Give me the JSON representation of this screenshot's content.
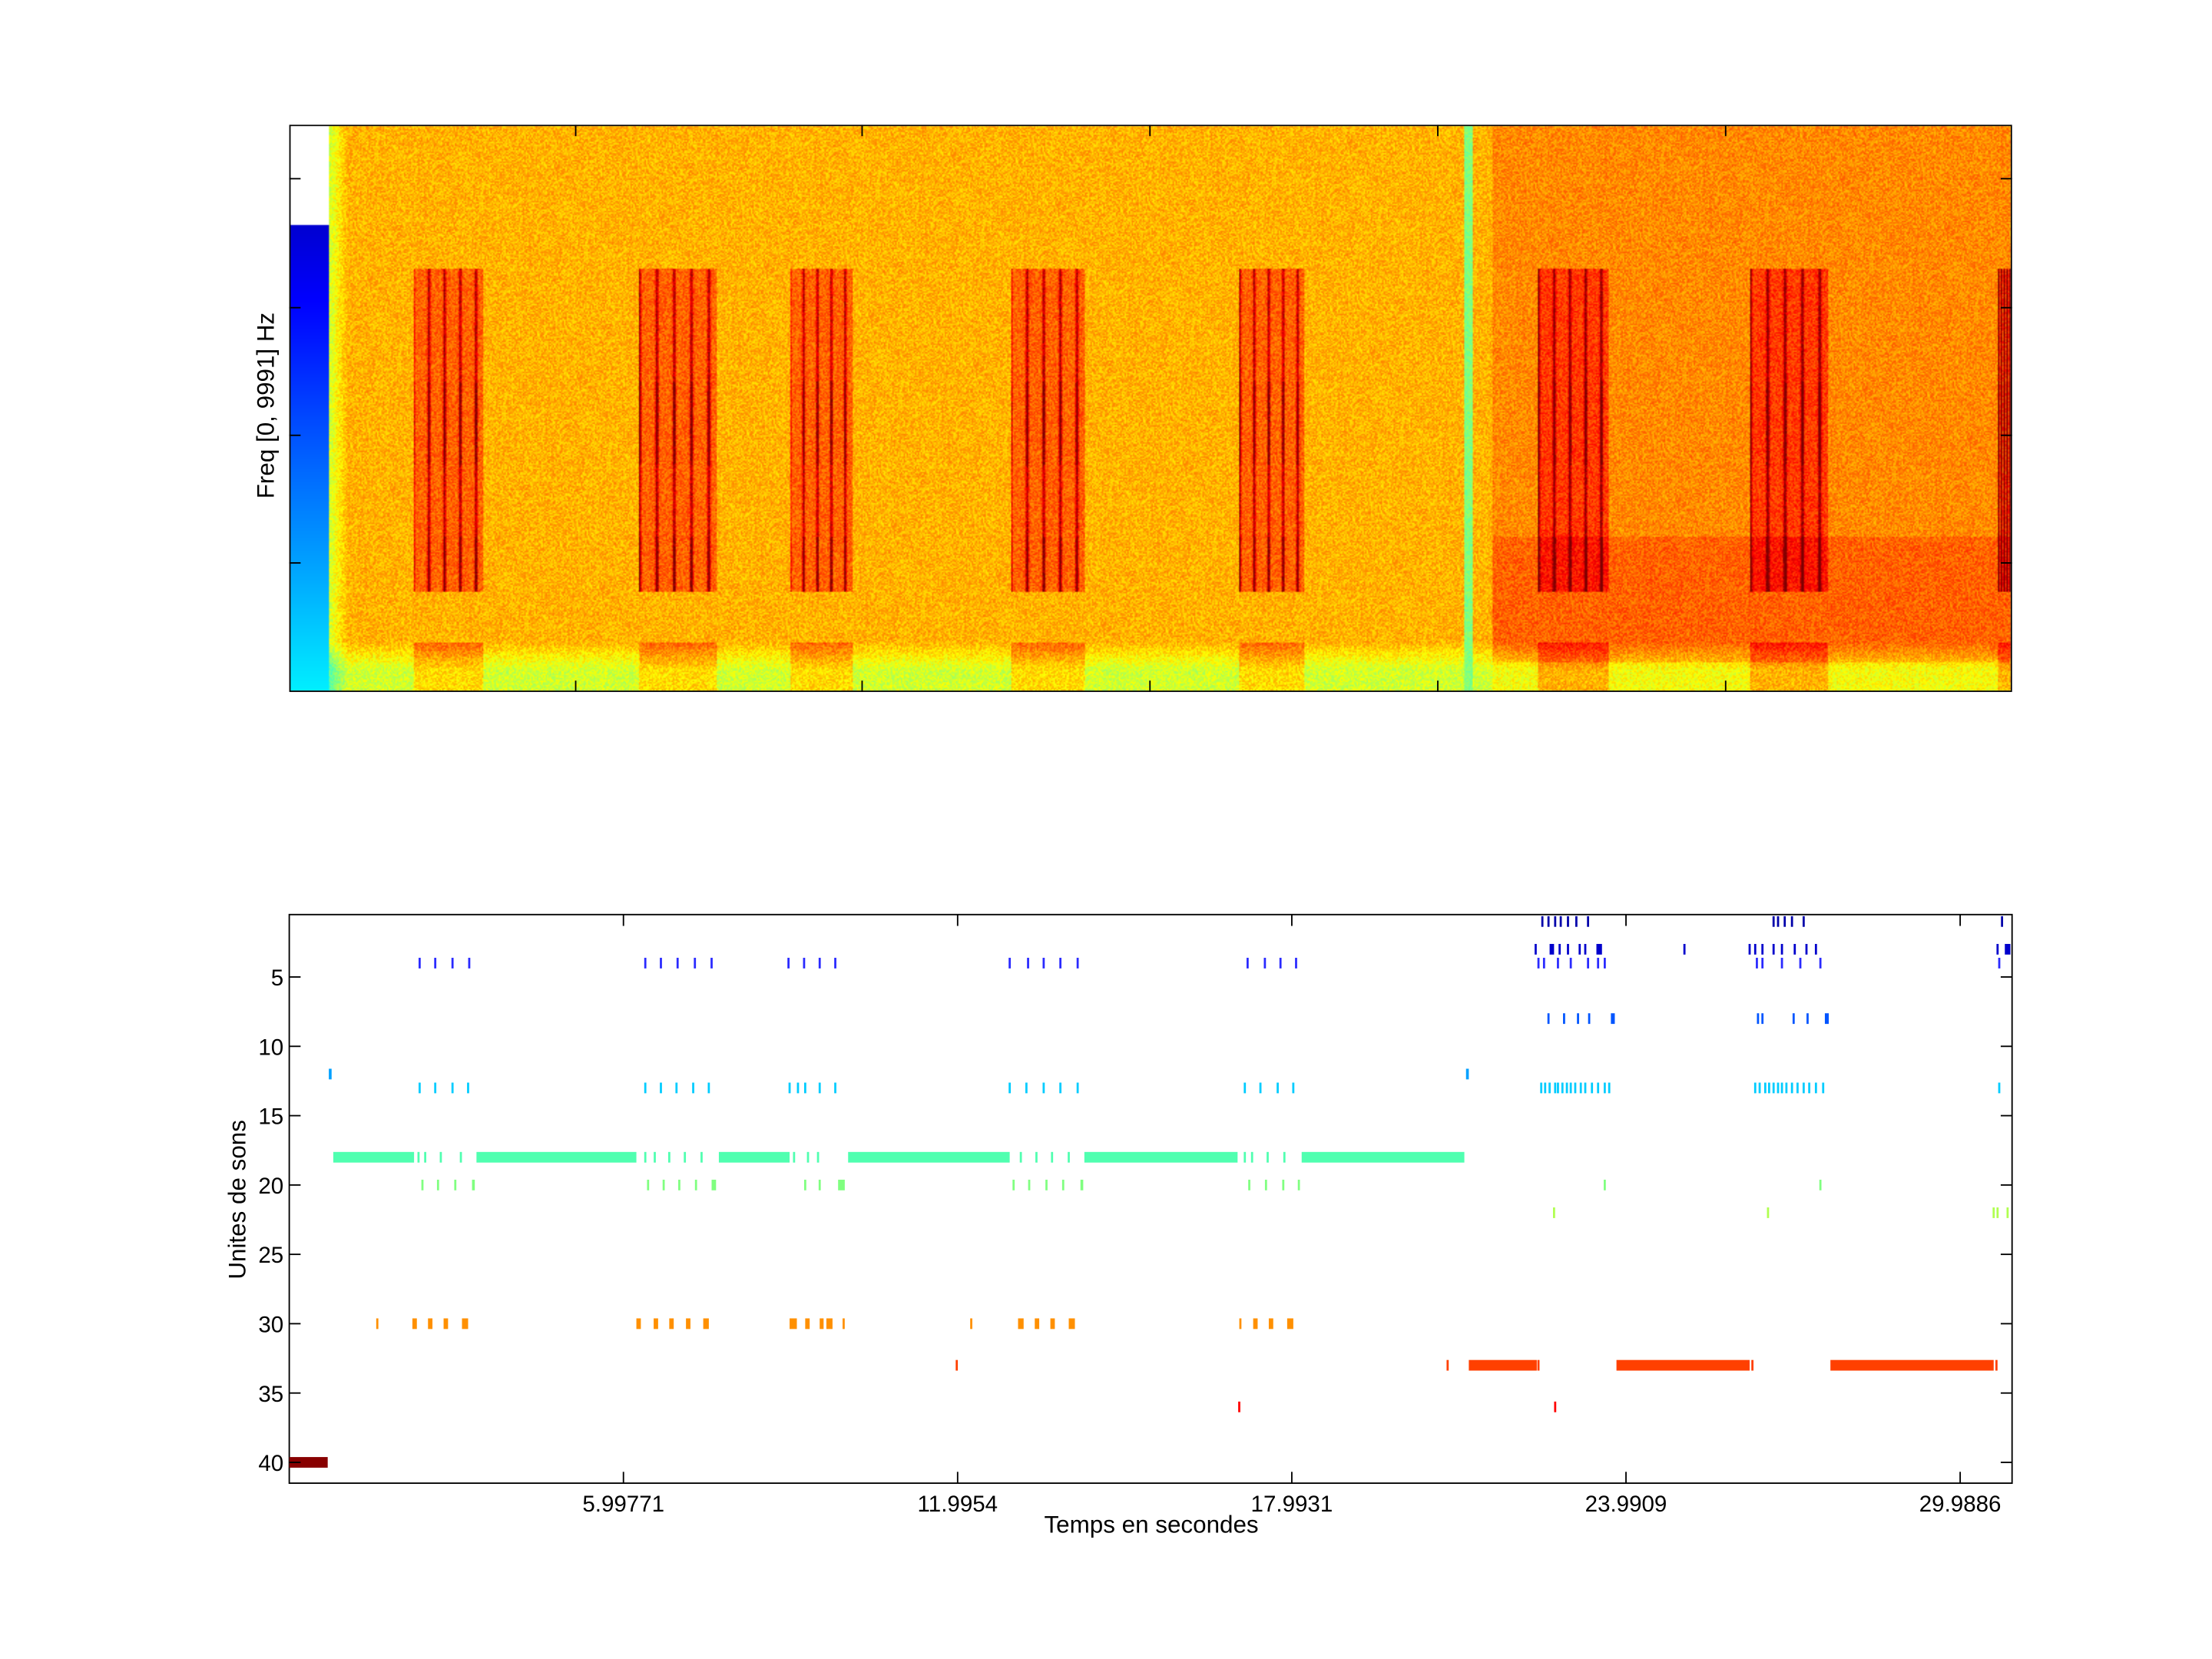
{
  "chart_data": [
    {
      "type": "heatmap",
      "title": "",
      "ylabel": "Freq [0, 9991] Hz",
      "xlabel": "",
      "colormap": "jet",
      "xlim": [
        0,
        30.92
      ],
      "high_energy_intervals_s": [
        [
          2.19,
          3.46
        ],
        [
          6.26,
          7.66
        ],
        [
          8.96,
          10.08
        ],
        [
          12.93,
          14.27
        ],
        [
          17.05,
          18.22
        ],
        [
          22.42,
          23.69
        ],
        [
          26.23,
          27.63
        ],
        [
          30.69,
          30.92
        ]
      ],
      "low_energy_stripe_s": 21.15
    },
    {
      "type": "scatter",
      "subtype": "event-raster",
      "title": "",
      "xlabel": "Temps en secondes",
      "ylabel": "Unites de sons",
      "xlim": [
        0,
        30.92
      ],
      "ylim": [
        0.5,
        41.5
      ],
      "y_reversed": true,
      "xticks": [
        5.99771,
        11.9954,
        17.9931,
        23.9909,
        29.9886
      ],
      "xtick_labels": [
        "5.99771",
        "11.9954",
        "17.9931",
        "23.9909",
        "29.9886"
      ],
      "yticks": [
        5,
        10,
        15,
        20,
        25,
        30,
        35,
        40
      ],
      "ytick_labels": [
        "5",
        "10",
        "15",
        "20",
        "25",
        "30",
        "35",
        "40"
      ],
      "series": [
        {
          "unit": 1,
          "color": "#0000aa",
          "events": [
            22.49,
            22.6,
            22.72,
            22.82,
            22.95,
            23.1,
            23.31,
            26.64,
            26.72,
            26.84,
            26.97,
            27.18,
            30.74
          ]
        },
        {
          "unit": 3,
          "color": "#0000cc",
          "events": [
            22.37,
            [
              22.62,
              22.7
            ],
            22.8,
            22.95,
            23.16,
            23.26,
            [
              23.46,
              23.56
            ],
            25.04,
            26.21,
            26.31,
            26.44,
            26.64,
            26.79,
            27.02,
            27.23,
            27.4,
            30.66,
            [
              30.79,
              30.89
            ]
          ]
        },
        {
          "unit": 4,
          "color": "#2a2aff",
          "events": [
            2.34,
            2.62,
            2.93,
            3.23,
            6.39,
            6.67,
            6.97,
            7.28,
            7.58,
            8.96,
            9.24,
            9.52,
            9.8,
            12.93,
            13.26,
            13.54,
            13.84,
            14.15,
            17.2,
            17.51,
            17.79,
            18.07,
            22.42,
            22.52,
            22.77,
            23.0,
            23.31,
            23.49,
            23.61,
            26.34,
            26.44,
            26.79,
            27.12,
            27.48,
            30.69
          ]
        },
        {
          "unit": 8,
          "color": "#0055ff",
          "events": [
            22.6,
            22.88,
            23.13,
            23.33,
            [
              23.72,
              23.79
            ],
            26.36,
            26.44,
            27.0,
            27.25,
            [
              27.56,
              27.63
            ]
          ]
        },
        {
          "unit": 12,
          "color": "#00a0ff",
          "events": [
            [
              0.71,
              0.76
            ],
            [
              21.12,
              21.17
            ]
          ]
        },
        {
          "unit": 13,
          "color": "#00ccff",
          "events": [
            2.34,
            2.62,
            2.93,
            3.21,
            6.39,
            6.67,
            6.95,
            7.25,
            7.53,
            8.98,
            9.13,
            9.26,
            9.52,
            9.8,
            12.93,
            13.23,
            13.54,
            13.84,
            14.15,
            17.15,
            17.43,
            17.74,
            18.02,
            22.47,
            22.54,
            22.62,
            22.72,
            22.77,
            22.85,
            22.93,
            23.0,
            23.08,
            23.18,
            23.26,
            23.38,
            23.49,
            23.61,
            23.69,
            26.31,
            26.39,
            26.49,
            26.56,
            26.64,
            26.72,
            26.79,
            26.87,
            26.97,
            27.07,
            27.18,
            27.28,
            27.4,
            27.53,
            30.69
          ]
        },
        {
          "unit": 18,
          "color": "#50ffb0",
          "events": [
            [
              0.79,
              2.24
            ],
            2.32,
            2.44,
            2.72,
            3.08,
            [
              3.36,
              6.23
            ],
            6.39,
            6.56,
            6.82,
            7.1,
            7.4,
            [
              7.71,
              8.98
            ],
            9.06,
            9.31,
            9.49,
            [
              10.03,
              12.93
            ],
            13.13,
            13.41,
            13.69,
            13.99,
            [
              14.27,
              17.02
            ],
            17.15,
            17.28,
            17.56,
            17.86,
            [
              18.17,
              21.09
            ]
          ]
        },
        {
          "unit": 20,
          "color": "#80ff80",
          "events": [
            2.39,
            2.67,
            2.98,
            [
              3.28,
              3.33
            ],
            6.44,
            6.72,
            7.0,
            7.3,
            [
              7.58,
              7.66
            ],
            9.26,
            9.52,
            [
              9.85,
              9.97
            ],
            13.0,
            13.28,
            13.59,
            13.89,
            [
              14.2,
              14.25
            ],
            17.23,
            17.53,
            17.84,
            18.12,
            23.61,
            27.48
          ]
        },
        {
          "unit": 22,
          "color": "#b0ff50",
          "events": [
            22.7,
            26.54,
            30.59,
            30.66,
            30.84
          ]
        },
        {
          "unit": 30,
          "color": "#ff9000",
          "events": [
            1.58,
            [
              2.21,
              2.29
            ],
            [
              2.49,
              2.57
            ],
            [
              2.77,
              2.85
            ],
            [
              3.1,
              3.21
            ],
            [
              6.23,
              6.31
            ],
            [
              6.54,
              6.62
            ],
            [
              6.82,
              6.9
            ],
            [
              7.12,
              7.2
            ],
            [
              7.43,
              7.53
            ],
            [
              8.98,
              9.11
            ],
            [
              9.26,
              9.34
            ],
            [
              9.52,
              9.59
            ],
            [
              9.64,
              9.75
            ],
            9.95,
            12.24,
            [
              13.08,
              13.18
            ],
            [
              13.38,
              13.46
            ],
            [
              13.66,
              13.74
            ],
            [
              13.99,
              14.1
            ],
            17.07,
            [
              17.3,
              17.38
            ],
            [
              17.58,
              17.66
            ],
            [
              17.91,
              18.02
            ]
          ]
        },
        {
          "unit": 33,
          "color": "#ff4000",
          "events": [
            11.98,
            20.79,
            [
              21.17,
              22.39
            ],
            22.42,
            [
              23.82,
              26.21
            ],
            26.26,
            [
              27.66,
              30.59
            ],
            30.64
          ]
        },
        {
          "unit": 36,
          "color": "#ff0000",
          "events": [
            17.05,
            22.72
          ]
        },
        {
          "unit": 40,
          "color": "#880000",
          "events": [
            [
              0.0,
              0.69
            ]
          ]
        }
      ]
    }
  ]
}
